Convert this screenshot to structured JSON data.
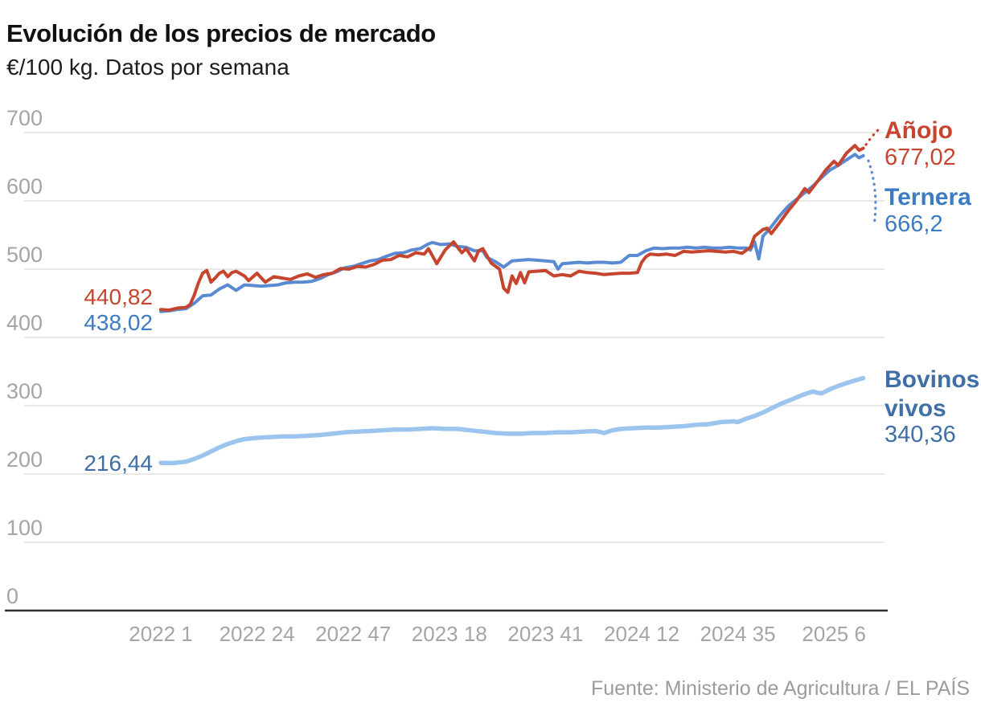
{
  "header": {
    "title": "Evolución de los precios de mercado",
    "subtitle": "€/100 kg. Datos por semana"
  },
  "footer": {
    "source": "Fuente: Ministerio de Agricultura / EL PAÍS"
  },
  "colors": {
    "anojo": "#c5452f",
    "ternera_line": "#5a8bd2",
    "ternera_label": "#3d7bc2",
    "bovinos_line": "#9cc5ee",
    "bovinos_label": "#3f6fa5",
    "axis_text": "#a5a5a5",
    "grid": "#e8e8e8",
    "baseline": "#2f2f2f",
    "title_text": "#111111"
  },
  "annotations": {
    "anojo": {
      "name": "Añojo",
      "start_value": "440,82",
      "end_value": "677,02"
    },
    "ternera": {
      "name": "Ternera",
      "start_value": "438,02",
      "end_value": "666,2"
    },
    "bovinos": {
      "name": "Bovinos vivos",
      "start_value": "216,44",
      "end_value": "340,36"
    }
  },
  "chart_data": {
    "type": "line",
    "title": "Evolución de los precios de mercado",
    "ylabel": "€/100 kg",
    "frequency": "Datos por semana",
    "x_unit": "año y semana (semanas desde 2022-1)",
    "ylim": [
      0,
      700
    ],
    "yticks": [
      0,
      100,
      200,
      300,
      400,
      500,
      600,
      700
    ],
    "grid": "horizontal",
    "legend_position": "line-end-labels",
    "xticks": [
      {
        "label": "2022 1",
        "week": 0
      },
      {
        "label": "2022 24",
        "week": 23
      },
      {
        "label": "2022 47",
        "week": 46
      },
      {
        "label": "2023 18",
        "week": 69
      },
      {
        "label": "2023 41",
        "week": 92
      },
      {
        "label": "2024 12",
        "week": 115
      },
      {
        "label": "2024 35",
        "week": 138
      },
      {
        "label": "2025 6",
        "week": 161
      }
    ],
    "series": [
      {
        "name": "Bovinos vivos",
        "start": 216.44,
        "end": 340.36,
        "points": [
          [
            0,
            216.4
          ],
          [
            3,
            216
          ],
          [
            6,
            218
          ],
          [
            8,
            222
          ],
          [
            10,
            227
          ],
          [
            12,
            233
          ],
          [
            14,
            239
          ],
          [
            16,
            244
          ],
          [
            18,
            248
          ],
          [
            20,
            251
          ],
          [
            23,
            253
          ],
          [
            26,
            254
          ],
          [
            29,
            255
          ],
          [
            32,
            255
          ],
          [
            35,
            256
          ],
          [
            38,
            257
          ],
          [
            41,
            259
          ],
          [
            44,
            261
          ],
          [
            47,
            262
          ],
          [
            50,
            263
          ],
          [
            53,
            264
          ],
          [
            56,
            265
          ],
          [
            59,
            265
          ],
          [
            62,
            266
          ],
          [
            65,
            267
          ],
          [
            68,
            266
          ],
          [
            71,
            266
          ],
          [
            74,
            264
          ],
          [
            77,
            262
          ],
          [
            80,
            260
          ],
          [
            83,
            259
          ],
          [
            86,
            259
          ],
          [
            89,
            260
          ],
          [
            92,
            260
          ],
          [
            95,
            261
          ],
          [
            98,
            261
          ],
          [
            101,
            262
          ],
          [
            104,
            263
          ],
          [
            106,
            260
          ],
          [
            108,
            264
          ],
          [
            110,
            266
          ],
          [
            113,
            267
          ],
          [
            116,
            268
          ],
          [
            119,
            268
          ],
          [
            122,
            269
          ],
          [
            125,
            270
          ],
          [
            128,
            272
          ],
          [
            131,
            273
          ],
          [
            134,
            276
          ],
          [
            137,
            277
          ],
          [
            138,
            276
          ],
          [
            140,
            281
          ],
          [
            142,
            285
          ],
          [
            144,
            290
          ],
          [
            146,
            296
          ],
          [
            148,
            302
          ],
          [
            150,
            307
          ],
          [
            152,
            312
          ],
          [
            154,
            317
          ],
          [
            156,
            321
          ],
          [
            157,
            319
          ],
          [
            158,
            318
          ],
          [
            160,
            324
          ],
          [
            162,
            329
          ],
          [
            164,
            333
          ],
          [
            166,
            337
          ],
          [
            168,
            340.4
          ]
        ]
      },
      {
        "name": "Ternera",
        "start": 438.02,
        "end": 666.2,
        "points": [
          [
            0,
            438
          ],
          [
            2,
            439
          ],
          [
            4,
            441
          ],
          [
            6,
            442
          ],
          [
            8,
            450
          ],
          [
            10,
            461
          ],
          [
            12,
            462
          ],
          [
            14,
            471
          ],
          [
            16,
            477
          ],
          [
            18,
            469
          ],
          [
            20,
            477
          ],
          [
            22,
            476
          ],
          [
            24,
            475
          ],
          [
            26,
            476
          ],
          [
            28,
            477
          ],
          [
            30,
            480
          ],
          [
            32,
            481
          ],
          [
            34,
            481
          ],
          [
            36,
            482
          ],
          [
            38,
            486
          ],
          [
            40,
            492
          ],
          [
            42,
            496
          ],
          [
            44,
            502
          ],
          [
            46,
            504
          ],
          [
            48,
            508
          ],
          [
            50,
            512
          ],
          [
            52,
            514
          ],
          [
            54,
            519
          ],
          [
            56,
            523
          ],
          [
            58,
            524
          ],
          [
            60,
            528
          ],
          [
            62,
            530
          ],
          [
            64,
            537
          ],
          [
            65,
            539
          ],
          [
            67,
            536
          ],
          [
            69,
            537
          ],
          [
            71,
            533
          ],
          [
            73,
            532
          ],
          [
            75,
            527
          ],
          [
            77,
            527
          ],
          [
            78,
            517
          ],
          [
            80,
            511
          ],
          [
            82,
            503
          ],
          [
            84,
            512
          ],
          [
            86,
            513
          ],
          [
            88,
            514
          ],
          [
            90,
            513
          ],
          [
            92,
            512
          ],
          [
            94,
            511
          ],
          [
            95,
            500
          ],
          [
            96,
            508
          ],
          [
            98,
            509
          ],
          [
            100,
            510
          ],
          [
            102,
            509
          ],
          [
            104,
            510
          ],
          [
            106,
            510
          ],
          [
            108,
            509
          ],
          [
            110,
            510
          ],
          [
            112,
            520
          ],
          [
            114,
            520
          ],
          [
            116,
            527
          ],
          [
            118,
            531
          ],
          [
            120,
            530
          ],
          [
            122,
            531
          ],
          [
            124,
            531
          ],
          [
            126,
            532
          ],
          [
            128,
            531
          ],
          [
            130,
            532
          ],
          [
            132,
            531
          ],
          [
            134,
            531
          ],
          [
            136,
            532
          ],
          [
            138,
            531
          ],
          [
            140,
            531
          ],
          [
            141,
            528
          ],
          [
            142,
            540
          ],
          [
            143,
            515
          ],
          [
            144,
            548
          ],
          [
            146,
            562
          ],
          [
            148,
            578
          ],
          [
            150,
            592
          ],
          [
            152,
            602
          ],
          [
            154,
            612
          ],
          [
            156,
            622
          ],
          [
            158,
            634
          ],
          [
            160,
            645
          ],
          [
            162,
            652
          ],
          [
            164,
            660
          ],
          [
            166,
            668
          ],
          [
            167,
            663
          ],
          [
            168,
            666.2
          ]
        ]
      },
      {
        "name": "Añojo",
        "start": 440.82,
        "end": 677.02,
        "points": [
          [
            0,
            440.8
          ],
          [
            2,
            440
          ],
          [
            4,
            443
          ],
          [
            6,
            444
          ],
          [
            7,
            448
          ],
          [
            8,
            462
          ],
          [
            9,
            480
          ],
          [
            10,
            494
          ],
          [
            11,
            498
          ],
          [
            12,
            481
          ],
          [
            13,
            487
          ],
          [
            14,
            494
          ],
          [
            15,
            497
          ],
          [
            16,
            489
          ],
          [
            17,
            495
          ],
          [
            18,
            497
          ],
          [
            20,
            490
          ],
          [
            21,
            483
          ],
          [
            23,
            494
          ],
          [
            25,
            481
          ],
          [
            27,
            489
          ],
          [
            29,
            487
          ],
          [
            31,
            485
          ],
          [
            33,
            490
          ],
          [
            35,
            493
          ],
          [
            37,
            488
          ],
          [
            39,
            492
          ],
          [
            41,
            494
          ],
          [
            43,
            501
          ],
          [
            45,
            500
          ],
          [
            47,
            504
          ],
          [
            49,
            503
          ],
          [
            51,
            507
          ],
          [
            53,
            513
          ],
          [
            55,
            514
          ],
          [
            57,
            520
          ],
          [
            59,
            518
          ],
          [
            61,
            524
          ],
          [
            63,
            522
          ],
          [
            64,
            530
          ],
          [
            66,
            508
          ],
          [
            68,
            528
          ],
          [
            70,
            540
          ],
          [
            72,
            524
          ],
          [
            73,
            530
          ],
          [
            75,
            512
          ],
          [
            76,
            527
          ],
          [
            77,
            530
          ],
          [
            79,
            509
          ],
          [
            81,
            500
          ],
          [
            82,
            472
          ],
          [
            83,
            466
          ],
          [
            84,
            490
          ],
          [
            85,
            479
          ],
          [
            86,
            495
          ],
          [
            87,
            480
          ],
          [
            88,
            496
          ],
          [
            90,
            497
          ],
          [
            92,
            498
          ],
          [
            94,
            490
          ],
          [
            96,
            492
          ],
          [
            98,
            490
          ],
          [
            100,
            497
          ],
          [
            102,
            495
          ],
          [
            104,
            494
          ],
          [
            106,
            492
          ],
          [
            108,
            493
          ],
          [
            110,
            494
          ],
          [
            112,
            494
          ],
          [
            114,
            495
          ],
          [
            115,
            510
          ],
          [
            116,
            518
          ],
          [
            117,
            522
          ],
          [
            119,
            521
          ],
          [
            121,
            522
          ],
          [
            123,
            520
          ],
          [
            125,
            526
          ],
          [
            127,
            525
          ],
          [
            129,
            526
          ],
          [
            131,
            527
          ],
          [
            133,
            526
          ],
          [
            135,
            525
          ],
          [
            137,
            526
          ],
          [
            139,
            523
          ],
          [
            141,
            532
          ],
          [
            142,
            548
          ],
          [
            144,
            558
          ],
          [
            145,
            560
          ],
          [
            146,
            552
          ],
          [
            148,
            568
          ],
          [
            150,
            585
          ],
          [
            152,
            600
          ],
          [
            154,
            618
          ],
          [
            155,
            612
          ],
          [
            157,
            628
          ],
          [
            159,
            645
          ],
          [
            161,
            658
          ],
          [
            162,
            652
          ],
          [
            164,
            670
          ],
          [
            166,
            681
          ],
          [
            167,
            674
          ],
          [
            168,
            677
          ]
        ]
      }
    ]
  }
}
